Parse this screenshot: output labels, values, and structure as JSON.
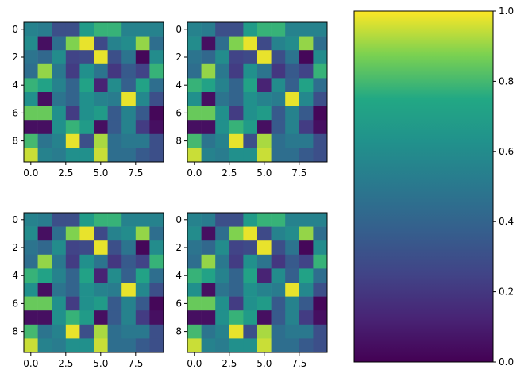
{
  "chart_data": {
    "type": "heatmap",
    "colormap": "viridis",
    "value_range": [
      0,
      1
    ],
    "grid_rows": 2,
    "grid_cols": 2,
    "panels": [
      {
        "xlim": [
          -0.5,
          9.5
        ],
        "ylim": [
          9.5,
          -0.5
        ],
        "x_ticks": [
          0,
          2.5,
          5,
          7.5
        ],
        "x_tick_labels": [
          "0.0",
          "2.5",
          "5.0",
          "7.5"
        ],
        "y_ticks": [
          0,
          2,
          4,
          6,
          8
        ],
        "y_tick_labels": [
          "0",
          "2",
          "4",
          "6",
          "8"
        ],
        "matrix": [
          [
            0.55,
            0.52,
            0.3,
            0.3,
            0.68,
            0.78,
            0.78,
            0.55,
            0.55,
            0.55
          ],
          [
            0.6,
            0.05,
            0.45,
            0.88,
            0.98,
            0.28,
            0.55,
            0.6,
            0.9,
            0.45
          ],
          [
            0.48,
            0.42,
            0.6,
            0.25,
            0.28,
            0.98,
            0.3,
            0.48,
            0.02,
            0.6
          ],
          [
            0.45,
            0.9,
            0.5,
            0.22,
            0.62,
            0.48,
            0.2,
            0.35,
            0.25,
            0.78
          ],
          [
            0.78,
            0.72,
            0.55,
            0.4,
            0.72,
            0.12,
            0.6,
            0.38,
            0.72,
            0.45
          ],
          [
            0.62,
            0.05,
            0.48,
            0.4,
            0.62,
            0.55,
            0.52,
            0.98,
            0.58,
            0.3
          ],
          [
            0.85,
            0.85,
            0.62,
            0.22,
            0.62,
            0.68,
            0.35,
            0.55,
            0.35,
            0.02
          ],
          [
            0.05,
            0.05,
            0.62,
            0.78,
            0.68,
            0.05,
            0.35,
            0.55,
            0.22,
            0.05
          ],
          [
            0.8,
            0.48,
            0.55,
            0.98,
            0.3,
            0.92,
            0.45,
            0.5,
            0.5,
            0.3
          ],
          [
            0.95,
            0.55,
            0.52,
            0.62,
            0.62,
            0.95,
            0.45,
            0.45,
            0.35,
            0.3
          ]
        ]
      },
      {
        "xlim": [
          -0.5,
          9.5
        ],
        "ylim": [
          9.5,
          -0.5
        ],
        "x_ticks": [
          0,
          2.5,
          5,
          7.5
        ],
        "x_tick_labels": [
          "0.0",
          "2.5",
          "5.0",
          "7.5"
        ],
        "y_ticks": [
          0,
          2,
          4,
          6,
          8
        ],
        "y_tick_labels": [
          "0",
          "2",
          "4",
          "6",
          "8"
        ],
        "matrix": [
          [
            0.55,
            0.52,
            0.3,
            0.3,
            0.68,
            0.78,
            0.78,
            0.55,
            0.55,
            0.55
          ],
          [
            0.6,
            0.05,
            0.45,
            0.88,
            0.98,
            0.28,
            0.55,
            0.6,
            0.9,
            0.45
          ],
          [
            0.48,
            0.42,
            0.6,
            0.25,
            0.28,
            0.98,
            0.3,
            0.48,
            0.02,
            0.6
          ],
          [
            0.45,
            0.9,
            0.5,
            0.22,
            0.62,
            0.48,
            0.2,
            0.35,
            0.25,
            0.78
          ],
          [
            0.78,
            0.72,
            0.55,
            0.4,
            0.72,
            0.12,
            0.6,
            0.38,
            0.72,
            0.45
          ],
          [
            0.62,
            0.05,
            0.48,
            0.4,
            0.62,
            0.55,
            0.52,
            0.98,
            0.58,
            0.3
          ],
          [
            0.85,
            0.85,
            0.62,
            0.22,
            0.62,
            0.68,
            0.35,
            0.55,
            0.35,
            0.02
          ],
          [
            0.05,
            0.05,
            0.62,
            0.78,
            0.68,
            0.05,
            0.35,
            0.55,
            0.22,
            0.05
          ],
          [
            0.8,
            0.48,
            0.55,
            0.98,
            0.3,
            0.92,
            0.45,
            0.5,
            0.5,
            0.3
          ],
          [
            0.95,
            0.55,
            0.52,
            0.62,
            0.62,
            0.95,
            0.45,
            0.45,
            0.35,
            0.3
          ]
        ]
      },
      {
        "xlim": [
          -0.5,
          9.5
        ],
        "ylim": [
          9.5,
          -0.5
        ],
        "x_ticks": [
          0,
          2.5,
          5,
          7.5
        ],
        "x_tick_labels": [
          "0.0",
          "2.5",
          "5.0",
          "7.5"
        ],
        "y_ticks": [
          0,
          2,
          4,
          6,
          8
        ],
        "y_tick_labels": [
          "0",
          "2",
          "4",
          "6",
          "8"
        ],
        "matrix": [
          [
            0.55,
            0.52,
            0.3,
            0.3,
            0.68,
            0.78,
            0.78,
            0.55,
            0.55,
            0.55
          ],
          [
            0.6,
            0.05,
            0.45,
            0.88,
            0.98,
            0.28,
            0.55,
            0.6,
            0.9,
            0.45
          ],
          [
            0.48,
            0.42,
            0.6,
            0.25,
            0.28,
            0.98,
            0.3,
            0.48,
            0.02,
            0.6
          ],
          [
            0.45,
            0.9,
            0.5,
            0.22,
            0.62,
            0.48,
            0.2,
            0.35,
            0.25,
            0.78
          ],
          [
            0.78,
            0.72,
            0.55,
            0.4,
            0.72,
            0.12,
            0.6,
            0.38,
            0.72,
            0.45
          ],
          [
            0.62,
            0.05,
            0.48,
            0.4,
            0.62,
            0.55,
            0.52,
            0.98,
            0.58,
            0.3
          ],
          [
            0.85,
            0.85,
            0.62,
            0.22,
            0.62,
            0.68,
            0.35,
            0.55,
            0.35,
            0.02
          ],
          [
            0.05,
            0.05,
            0.62,
            0.78,
            0.68,
            0.05,
            0.35,
            0.55,
            0.22,
            0.05
          ],
          [
            0.8,
            0.48,
            0.55,
            0.98,
            0.3,
            0.92,
            0.45,
            0.5,
            0.5,
            0.3
          ],
          [
            0.95,
            0.55,
            0.52,
            0.62,
            0.62,
            0.95,
            0.45,
            0.45,
            0.35,
            0.3
          ]
        ]
      },
      {
        "xlim": [
          -0.5,
          9.5
        ],
        "ylim": [
          9.5,
          -0.5
        ],
        "x_ticks": [
          0,
          2.5,
          5,
          7.5
        ],
        "x_tick_labels": [
          "0.0",
          "2.5",
          "5.0",
          "7.5"
        ],
        "y_ticks": [
          0,
          2,
          4,
          6,
          8
        ],
        "y_tick_labels": [
          "0",
          "2",
          "4",
          "6",
          "8"
        ],
        "matrix": [
          [
            0.55,
            0.52,
            0.3,
            0.3,
            0.68,
            0.78,
            0.78,
            0.55,
            0.55,
            0.55
          ],
          [
            0.6,
            0.05,
            0.45,
            0.88,
            0.98,
            0.28,
            0.55,
            0.6,
            0.9,
            0.45
          ],
          [
            0.48,
            0.42,
            0.6,
            0.25,
            0.28,
            0.98,
            0.3,
            0.48,
            0.02,
            0.6
          ],
          [
            0.45,
            0.9,
            0.5,
            0.22,
            0.62,
            0.48,
            0.2,
            0.35,
            0.25,
            0.78
          ],
          [
            0.78,
            0.72,
            0.55,
            0.4,
            0.72,
            0.12,
            0.6,
            0.38,
            0.72,
            0.45
          ],
          [
            0.62,
            0.05,
            0.48,
            0.4,
            0.62,
            0.55,
            0.52,
            0.98,
            0.58,
            0.3
          ],
          [
            0.85,
            0.85,
            0.62,
            0.22,
            0.62,
            0.68,
            0.35,
            0.55,
            0.35,
            0.02
          ],
          [
            0.05,
            0.05,
            0.62,
            0.78,
            0.68,
            0.05,
            0.35,
            0.55,
            0.22,
            0.05
          ],
          [
            0.8,
            0.48,
            0.55,
            0.98,
            0.3,
            0.92,
            0.45,
            0.5,
            0.5,
            0.3
          ],
          [
            0.95,
            0.55,
            0.52,
            0.62,
            0.62,
            0.95,
            0.45,
            0.45,
            0.35,
            0.3
          ]
        ]
      }
    ],
    "colorbar": {
      "range": [
        0,
        1
      ],
      "ticks": [
        0,
        0.2,
        0.4,
        0.6,
        0.8,
        1
      ],
      "tick_labels": [
        "0.0",
        "0.2",
        "0.4",
        "0.6",
        "0.8",
        "1.0"
      ],
      "orientation": "vertical",
      "placement": "right"
    }
  }
}
